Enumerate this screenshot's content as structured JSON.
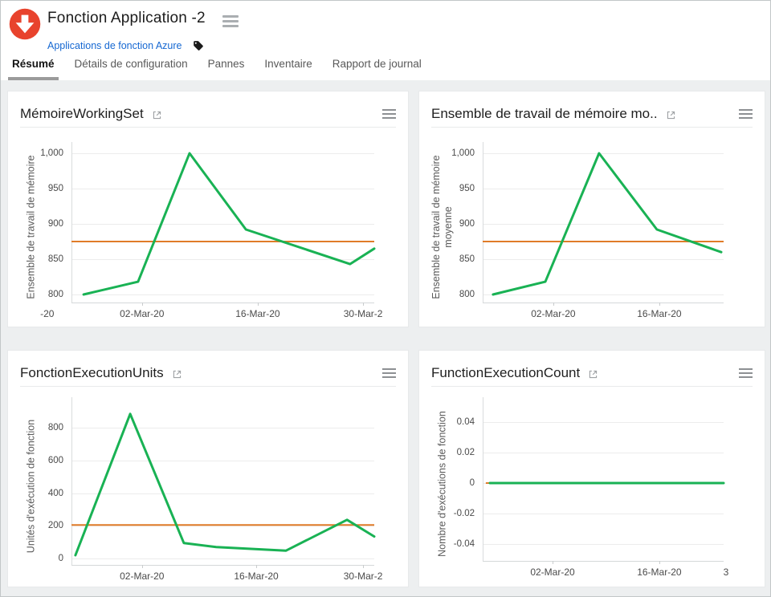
{
  "header": {
    "title": "Fonction Application -2",
    "breadcrumb_link": "Applications de fonction Azure"
  },
  "tabs": [
    {
      "label": "Résumé",
      "active": true
    },
    {
      "label": "Détails de configuration",
      "active": false
    },
    {
      "label": "Pannes",
      "active": false
    },
    {
      "label": "Inventaire",
      "active": false
    },
    {
      "label": "Rapport de journal",
      "active": false
    }
  ],
  "colors": {
    "series_green": "#19b254",
    "threshold_orange": "#e07b28",
    "link_blue": "#1668d2",
    "logo_red": "#e8432d",
    "active_tab_underline": "#9b9b9b"
  },
  "chart_data": [
    {
      "type": "line",
      "title": "MémoireWorkingSet",
      "ylabel": "Ensemble de travail de mémoire",
      "ylim": [
        788.6,
        1002.3
      ],
      "yticks": [
        {
          "label": "1,000",
          "v": 1000
        },
        {
          "label": "950",
          "v": 950
        },
        {
          "label": "900",
          "v": 900
        },
        {
          "label": "850",
          "v": 850
        },
        {
          "label": "800",
          "v": 800
        }
      ],
      "xticks": [
        {
          "label": "-20",
          "f": -0.08
        },
        {
          "label": "02-Mar-20",
          "f": 0.233
        },
        {
          "label": "16-Mar-20",
          "f": 0.615
        },
        {
          "label": "30-Mar-2",
          "f": 0.963
        }
      ],
      "series": [
        {
          "name": "MémoireWorkingSet",
          "color": "#19b254",
          "points": [
            {
              "date": "24-Feb-20",
              "f": 0.04,
              "v": 800
            },
            {
              "date": "01-Mar-20",
              "f": 0.22,
              "v": 818
            },
            {
              "date": "08-Mar-20",
              "f": 0.39,
              "v": 1000
            },
            {
              "date": "15-Mar-20",
              "f": 0.576,
              "v": 892
            },
            {
              "date": "28-Mar-20",
              "f": 0.92,
              "v": 843
            },
            {
              "date": "31-Mar-20",
              "f": 1.0,
              "v": 865
            }
          ]
        }
      ],
      "threshold": {
        "color": "#e07b28",
        "value": 875,
        "from": 0,
        "to": 1
      }
    },
    {
      "type": "line",
      "title": "Ensemble de travail de mémoire mo..",
      "ylabel": "Ensemble de travail de mémoire moyenne",
      "ylim": [
        788.6,
        1002.3
      ],
      "yticks": [
        {
          "label": "1,000",
          "v": 1000
        },
        {
          "label": "950",
          "v": 950
        },
        {
          "label": "900",
          "v": 900
        },
        {
          "label": "850",
          "v": 850
        },
        {
          "label": "800",
          "v": 800
        }
      ],
      "xticks": [
        {
          "label": "02-Mar-20",
          "f": 0.293
        },
        {
          "label": "16-Mar-20",
          "f": 0.733
        }
      ],
      "series": [
        {
          "name": "Ensemble de travail de mémoire moyenne",
          "color": "#19b254",
          "points": [
            {
              "date": "23-Feb-20",
              "f": 0.043,
              "v": 800
            },
            {
              "date": "01-Mar-20",
              "f": 0.26,
              "v": 818
            },
            {
              "date": "08-Mar-20",
              "f": 0.483,
              "v": 1000
            },
            {
              "date": "15-Mar-20",
              "f": 0.723,
              "v": 892
            },
            {
              "date": "24-Mar-20",
              "f": 0.99,
              "v": 860
            }
          ]
        }
      ],
      "threshold": {
        "color": "#e07b28",
        "value": 875,
        "from": 0,
        "to": 1
      }
    },
    {
      "type": "line",
      "title": "FonctionExecutionUnits",
      "ylabel": "Unités d'exécution de fonction",
      "ylim": [
        -39,
        928
      ],
      "yticks": [
        {
          "label": "800",
          "v": 800
        },
        {
          "label": "600",
          "v": 600
        },
        {
          "label": "400",
          "v": 400
        },
        {
          "label": "200",
          "v": 200
        },
        {
          "label": "0",
          "v": 0
        }
      ],
      "xticks": [
        {
          "label": "02-Mar-20",
          "f": 0.233
        },
        {
          "label": "16-Mar-20",
          "f": 0.61
        },
        {
          "label": "30-Mar-2",
          "f": 0.963
        }
      ],
      "series": [
        {
          "name": "FonctionExecutionUnits",
          "color": "#19b254",
          "points": [
            {
              "date": "23-Feb-20",
              "f": 0.013,
              "v": 20
            },
            {
              "date": "01-Mar-20",
              "f": 0.194,
              "v": 885
            },
            {
              "date": "07-Mar-20",
              "f": 0.371,
              "v": 95
            },
            {
              "date": "11-Mar-20",
              "f": 0.478,
              "v": 70
            },
            {
              "date": "20-Mar-20",
              "f": 0.708,
              "v": 48
            },
            {
              "date": "28-Mar-20",
              "f": 0.91,
              "v": 237
            },
            {
              "date": "31-Mar-20",
              "f": 1.0,
              "v": 135
            }
          ]
        }
      ],
      "threshold": {
        "color": "#e07b28",
        "value": 205,
        "from": 0,
        "to": 1
      }
    },
    {
      "type": "line",
      "title": "FunctionExecutionCount",
      "ylabel": "Nombre d'exécutions de fonction",
      "ylim": [
        -0.0511,
        0.05
      ],
      "yticks": [
        {
          "label": "0.04",
          "v": 0.04
        },
        {
          "label": "0.02",
          "v": 0.02
        },
        {
          "label": "0",
          "v": 0
        },
        {
          "label": "-0.02",
          "v": -0.02
        },
        {
          "label": "-0.04",
          "v": -0.04
        }
      ],
      "xticks": [
        {
          "label": "02-Mar-20",
          "f": 0.29
        },
        {
          "label": "16-Mar-20",
          "f": 0.733
        },
        {
          "label": "3",
          "f": 1.01
        }
      ],
      "series": [
        {
          "name": "FunctionExecutionCount",
          "color": "#19b254",
          "points": [
            {
              "date": "23-Feb-20",
              "f": 0.03,
              "v": 0
            },
            {
              "date": "24-Mar-20",
              "f": 1.0,
              "v": 0
            }
          ]
        }
      ],
      "threshold": {
        "color": "#e07b28",
        "value": 0,
        "from": 0.013,
        "to": 1
      }
    }
  ]
}
